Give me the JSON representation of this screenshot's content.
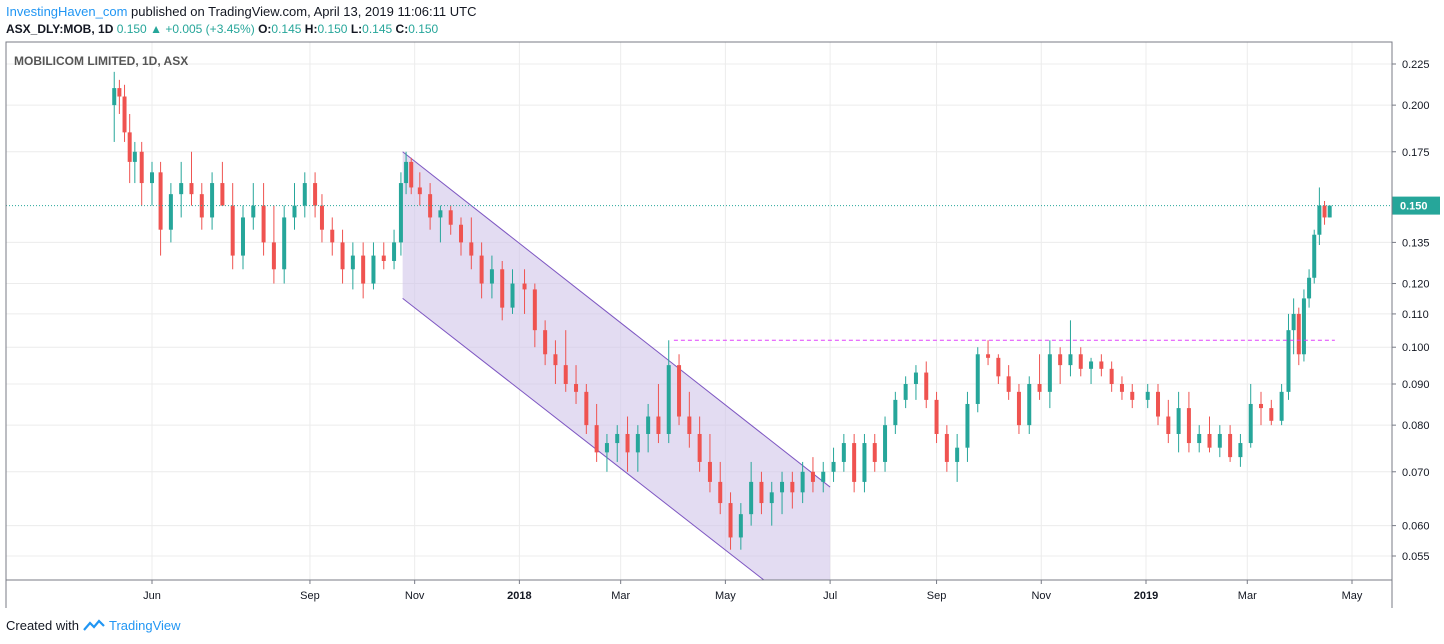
{
  "header": {
    "author": "InvestingHaven_com",
    "published_text": " published on TradingView.com, April 13, 2019 11:06:11 UTC",
    "symbol": "ASX_DLY:MOB, 1D",
    "last": "0.150",
    "change": "+0.005 (+3.45%)",
    "open_label": "O:",
    "open": "0.145",
    "high_label": "H:",
    "high": "0.150",
    "low_label": "L:",
    "low": "0.145",
    "close_label": "C:",
    "close": "0.150"
  },
  "footer": {
    "created_with": "Created with",
    "brand": "TradingView"
  },
  "colors": {
    "up": "#26a69a",
    "down": "#ef5350",
    "channel_fill": "#d1c4e9",
    "channel_line": "#7e57c2",
    "resistance": "#e040fb",
    "price_line": "#26a69a"
  },
  "chart_data": {
    "type": "candlestick",
    "title": "MOBILICOM LIMITED, 1D, ASX",
    "y_scale": "log",
    "ylim": [
      0.05,
      0.23
    ],
    "y_ticks": [
      "0.225",
      "0.200",
      "0.175",
      "0.135",
      "0.120",
      "0.110",
      "0.100",
      "0.090",
      "0.080",
      "0.070",
      "0.060",
      "0.055"
    ],
    "x_ticks": [
      {
        "label": "Jun",
        "date": "2017-06-01",
        "bold": false
      },
      {
        "label": "Sep",
        "date": "2017-09-01",
        "bold": false
      },
      {
        "label": "Nov",
        "date": "2017-11-01",
        "bold": false
      },
      {
        "label": "2018",
        "date": "2018-01-01",
        "bold": true
      },
      {
        "label": "Mar",
        "date": "2018-03-01",
        "bold": false
      },
      {
        "label": "May",
        "date": "2018-05-01",
        "bold": false
      },
      {
        "label": "Jul",
        "date": "2018-07-01",
        "bold": false
      },
      {
        "label": "Sep",
        "date": "2018-09-01",
        "bold": false
      },
      {
        "label": "Nov",
        "date": "2018-11-01",
        "bold": false
      },
      {
        "label": "2019",
        "date": "2019-01-01",
        "bold": true
      },
      {
        "label": "Mar",
        "date": "2019-03-01",
        "bold": false
      },
      {
        "label": "May",
        "date": "2019-05-01",
        "bold": false
      }
    ],
    "last_price_label": "0.150",
    "last_price": 0.15,
    "resistance_level": 0.102,
    "resistance_start": "2018-04-01",
    "resistance_end": "2019-04-21",
    "channel": {
      "upper_start": {
        "date": "2017-10-25",
        "price": 0.175
      },
      "upper_end": {
        "date": "2018-07-01",
        "price": 0.067
      },
      "lower_start": {
        "date": "2017-10-25",
        "price": 0.115
      },
      "lower_end": {
        "date": "2018-06-01",
        "price": 0.05
      },
      "fill_end_date": "2018-07-01",
      "lower_line_end": {
        "date": "2018-06-10",
        "price": 0.048
      }
    },
    "series": [
      {
        "x": "2017-05-10",
        "o": 0.2,
        "h": 0.22,
        "l": 0.18,
        "c": 0.21
      },
      {
        "x": "2017-05-13",
        "o": 0.21,
        "h": 0.215,
        "l": 0.195,
        "c": 0.205
      },
      {
        "x": "2017-05-16",
        "o": 0.205,
        "h": 0.212,
        "l": 0.18,
        "c": 0.185
      },
      {
        "x": "2017-05-19",
        "o": 0.185,
        "h": 0.195,
        "l": 0.16,
        "c": 0.17
      },
      {
        "x": "2017-05-22",
        "o": 0.17,
        "h": 0.18,
        "l": 0.16,
        "c": 0.175
      },
      {
        "x": "2017-05-26",
        "o": 0.175,
        "h": 0.18,
        "l": 0.15,
        "c": 0.16
      },
      {
        "x": "2017-06-01",
        "o": 0.16,
        "h": 0.17,
        "l": 0.15,
        "c": 0.165
      },
      {
        "x": "2017-06-06",
        "o": 0.165,
        "h": 0.17,
        "l": 0.13,
        "c": 0.14
      },
      {
        "x": "2017-06-12",
        "o": 0.14,
        "h": 0.16,
        "l": 0.135,
        "c": 0.155
      },
      {
        "x": "2017-06-18",
        "o": 0.155,
        "h": 0.17,
        "l": 0.145,
        "c": 0.16
      },
      {
        "x": "2017-06-24",
        "o": 0.16,
        "h": 0.175,
        "l": 0.15,
        "c": 0.155
      },
      {
        "x": "2017-06-30",
        "o": 0.155,
        "h": 0.16,
        "l": 0.14,
        "c": 0.145
      },
      {
        "x": "2017-07-06",
        "o": 0.145,
        "h": 0.165,
        "l": 0.14,
        "c": 0.16
      },
      {
        "x": "2017-07-12",
        "o": 0.16,
        "h": 0.17,
        "l": 0.15,
        "c": 0.15
      },
      {
        "x": "2017-07-18",
        "o": 0.15,
        "h": 0.16,
        "l": 0.125,
        "c": 0.13
      },
      {
        "x": "2017-07-24",
        "o": 0.13,
        "h": 0.15,
        "l": 0.125,
        "c": 0.145
      },
      {
        "x": "2017-07-30",
        "o": 0.145,
        "h": 0.16,
        "l": 0.14,
        "c": 0.15
      },
      {
        "x": "2017-08-05",
        "o": 0.15,
        "h": 0.16,
        "l": 0.13,
        "c": 0.135
      },
      {
        "x": "2017-08-11",
        "o": 0.135,
        "h": 0.15,
        "l": 0.12,
        "c": 0.125
      },
      {
        "x": "2017-08-17",
        "o": 0.125,
        "h": 0.15,
        "l": 0.12,
        "c": 0.145
      },
      {
        "x": "2017-08-23",
        "o": 0.145,
        "h": 0.16,
        "l": 0.14,
        "c": 0.15
      },
      {
        "x": "2017-08-29",
        "o": 0.15,
        "h": 0.165,
        "l": 0.145,
        "c": 0.16
      },
      {
        "x": "2017-09-04",
        "o": 0.16,
        "h": 0.165,
        "l": 0.145,
        "c": 0.15
      },
      {
        "x": "2017-09-08",
        "o": 0.15,
        "h": 0.155,
        "l": 0.135,
        "c": 0.14
      },
      {
        "x": "2017-09-14",
        "o": 0.14,
        "h": 0.145,
        "l": 0.13,
        "c": 0.135
      },
      {
        "x": "2017-09-20",
        "o": 0.135,
        "h": 0.14,
        "l": 0.12,
        "c": 0.125
      },
      {
        "x": "2017-09-26",
        "o": 0.125,
        "h": 0.135,
        "l": 0.118,
        "c": 0.13
      },
      {
        "x": "2017-10-02",
        "o": 0.13,
        "h": 0.135,
        "l": 0.115,
        "c": 0.12
      },
      {
        "x": "2017-10-08",
        "o": 0.12,
        "h": 0.135,
        "l": 0.118,
        "c": 0.13
      },
      {
        "x": "2017-10-14",
        "o": 0.13,
        "h": 0.135,
        "l": 0.125,
        "c": 0.128
      },
      {
        "x": "2017-10-20",
        "o": 0.128,
        "h": 0.14,
        "l": 0.125,
        "c": 0.135
      },
      {
        "x": "2017-10-24",
        "o": 0.135,
        "h": 0.165,
        "l": 0.13,
        "c": 0.16
      },
      {
        "x": "2017-10-27",
        "o": 0.16,
        "h": 0.175,
        "l": 0.155,
        "c": 0.17
      },
      {
        "x": "2017-10-30",
        "o": 0.17,
        "h": 0.172,
        "l": 0.155,
        "c": 0.158
      },
      {
        "x": "2017-11-04",
        "o": 0.158,
        "h": 0.165,
        "l": 0.15,
        "c": 0.155
      },
      {
        "x": "2017-11-10",
        "o": 0.155,
        "h": 0.16,
        "l": 0.14,
        "c": 0.145
      },
      {
        "x": "2017-11-16",
        "o": 0.145,
        "h": 0.15,
        "l": 0.135,
        "c": 0.148
      },
      {
        "x": "2017-11-22",
        "o": 0.148,
        "h": 0.15,
        "l": 0.138,
        "c": 0.142
      },
      {
        "x": "2017-11-28",
        "o": 0.142,
        "h": 0.145,
        "l": 0.13,
        "c": 0.135
      },
      {
        "x": "2017-12-04",
        "o": 0.135,
        "h": 0.145,
        "l": 0.125,
        "c": 0.13
      },
      {
        "x": "2017-12-10",
        "o": 0.13,
        "h": 0.135,
        "l": 0.115,
        "c": 0.12
      },
      {
        "x": "2017-12-16",
        "o": 0.12,
        "h": 0.13,
        "l": 0.115,
        "c": 0.125
      },
      {
        "x": "2017-12-22",
        "o": 0.125,
        "h": 0.128,
        "l": 0.108,
        "c": 0.112
      },
      {
        "x": "2017-12-28",
        "o": 0.112,
        "h": 0.125,
        "l": 0.11,
        "c": 0.12
      },
      {
        "x": "2018-01-04",
        "o": 0.12,
        "h": 0.125,
        "l": 0.11,
        "c": 0.118
      },
      {
        "x": "2018-01-10",
        "o": 0.118,
        "h": 0.12,
        "l": 0.1,
        "c": 0.105
      },
      {
        "x": "2018-01-16",
        "o": 0.105,
        "h": 0.108,
        "l": 0.095,
        "c": 0.098
      },
      {
        "x": "2018-01-22",
        "o": 0.098,
        "h": 0.102,
        "l": 0.09,
        "c": 0.095
      },
      {
        "x": "2018-01-28",
        "o": 0.095,
        "h": 0.105,
        "l": 0.088,
        "c": 0.09
      },
      {
        "x": "2018-02-03",
        "o": 0.09,
        "h": 0.095,
        "l": 0.085,
        "c": 0.088
      },
      {
        "x": "2018-02-09",
        "o": 0.088,
        "h": 0.09,
        "l": 0.078,
        "c": 0.08
      },
      {
        "x": "2018-02-15",
        "o": 0.08,
        "h": 0.085,
        "l": 0.072,
        "c": 0.074
      },
      {
        "x": "2018-02-21",
        "o": 0.074,
        "h": 0.078,
        "l": 0.07,
        "c": 0.076
      },
      {
        "x": "2018-02-27",
        "o": 0.076,
        "h": 0.08,
        "l": 0.072,
        "c": 0.078
      },
      {
        "x": "2018-03-05",
        "o": 0.078,
        "h": 0.082,
        "l": 0.07,
        "c": 0.074
      },
      {
        "x": "2018-03-11",
        "o": 0.074,
        "h": 0.08,
        "l": 0.07,
        "c": 0.078
      },
      {
        "x": "2018-03-17",
        "o": 0.078,
        "h": 0.085,
        "l": 0.074,
        "c": 0.082
      },
      {
        "x": "2018-03-23",
        "o": 0.082,
        "h": 0.09,
        "l": 0.076,
        "c": 0.078
      },
      {
        "x": "2018-03-29",
        "o": 0.078,
        "h": 0.102,
        "l": 0.076,
        "c": 0.095
      },
      {
        "x": "2018-04-04",
        "o": 0.095,
        "h": 0.098,
        "l": 0.08,
        "c": 0.082
      },
      {
        "x": "2018-04-10",
        "o": 0.082,
        "h": 0.088,
        "l": 0.075,
        "c": 0.078
      },
      {
        "x": "2018-04-16",
        "o": 0.078,
        "h": 0.082,
        "l": 0.07,
        "c": 0.072
      },
      {
        "x": "2018-04-22",
        "o": 0.072,
        "h": 0.078,
        "l": 0.066,
        "c": 0.068
      },
      {
        "x": "2018-04-28",
        "o": 0.068,
        "h": 0.072,
        "l": 0.062,
        "c": 0.064
      },
      {
        "x": "2018-05-04",
        "o": 0.064,
        "h": 0.066,
        "l": 0.056,
        "c": 0.058
      },
      {
        "x": "2018-05-10",
        "o": 0.058,
        "h": 0.064,
        "l": 0.056,
        "c": 0.062
      },
      {
        "x": "2018-05-16",
        "o": 0.062,
        "h": 0.072,
        "l": 0.06,
        "c": 0.068
      },
      {
        "x": "2018-05-22",
        "o": 0.068,
        "h": 0.07,
        "l": 0.062,
        "c": 0.064
      },
      {
        "x": "2018-05-28",
        "o": 0.064,
        "h": 0.068,
        "l": 0.06,
        "c": 0.066
      },
      {
        "x": "2018-06-03",
        "o": 0.066,
        "h": 0.07,
        "l": 0.062,
        "c": 0.068
      },
      {
        "x": "2018-06-09",
        "o": 0.068,
        "h": 0.07,
        "l": 0.063,
        "c": 0.066
      },
      {
        "x": "2018-06-15",
        "o": 0.066,
        "h": 0.072,
        "l": 0.064,
        "c": 0.07
      },
      {
        "x": "2018-06-21",
        "o": 0.07,
        "h": 0.073,
        "l": 0.066,
        "c": 0.068
      },
      {
        "x": "2018-06-27",
        "o": 0.068,
        "h": 0.072,
        "l": 0.066,
        "c": 0.07
      },
      {
        "x": "2018-07-03",
        "o": 0.07,
        "h": 0.075,
        "l": 0.068,
        "c": 0.072
      },
      {
        "x": "2018-07-09",
        "o": 0.072,
        "h": 0.078,
        "l": 0.07,
        "c": 0.076
      },
      {
        "x": "2018-07-15",
        "o": 0.076,
        "h": 0.078,
        "l": 0.066,
        "c": 0.068
      },
      {
        "x": "2018-07-21",
        "o": 0.068,
        "h": 0.078,
        "l": 0.066,
        "c": 0.076
      },
      {
        "x": "2018-07-27",
        "o": 0.076,
        "h": 0.078,
        "l": 0.07,
        "c": 0.072
      },
      {
        "x": "2018-08-02",
        "o": 0.072,
        "h": 0.082,
        "l": 0.07,
        "c": 0.08
      },
      {
        "x": "2018-08-08",
        "o": 0.08,
        "h": 0.088,
        "l": 0.078,
        "c": 0.086
      },
      {
        "x": "2018-08-14",
        "o": 0.086,
        "h": 0.092,
        "l": 0.084,
        "c": 0.09
      },
      {
        "x": "2018-08-20",
        "o": 0.09,
        "h": 0.095,
        "l": 0.086,
        "c": 0.093
      },
      {
        "x": "2018-08-26",
        "o": 0.093,
        "h": 0.096,
        "l": 0.084,
        "c": 0.086
      },
      {
        "x": "2018-09-01",
        "o": 0.086,
        "h": 0.088,
        "l": 0.076,
        "c": 0.078
      },
      {
        "x": "2018-09-07",
        "o": 0.078,
        "h": 0.08,
        "l": 0.07,
        "c": 0.072
      },
      {
        "x": "2018-09-13",
        "o": 0.072,
        "h": 0.078,
        "l": 0.068,
        "c": 0.075
      },
      {
        "x": "2018-09-19",
        "o": 0.075,
        "h": 0.088,
        "l": 0.072,
        "c": 0.085
      },
      {
        "x": "2018-09-25",
        "o": 0.085,
        "h": 0.1,
        "l": 0.083,
        "c": 0.098
      },
      {
        "x": "2018-10-01",
        "o": 0.098,
        "h": 0.102,
        "l": 0.095,
        "c": 0.097
      },
      {
        "x": "2018-10-07",
        "o": 0.097,
        "h": 0.098,
        "l": 0.09,
        "c": 0.092
      },
      {
        "x": "2018-10-13",
        "o": 0.092,
        "h": 0.095,
        "l": 0.086,
        "c": 0.088
      },
      {
        "x": "2018-10-19",
        "o": 0.088,
        "h": 0.09,
        "l": 0.078,
        "c": 0.08
      },
      {
        "x": "2018-10-25",
        "o": 0.08,
        "h": 0.092,
        "l": 0.078,
        "c": 0.09
      },
      {
        "x": "2018-10-31",
        "o": 0.09,
        "h": 0.098,
        "l": 0.086,
        "c": 0.088
      },
      {
        "x": "2018-11-06",
        "o": 0.088,
        "h": 0.102,
        "l": 0.084,
        "c": 0.098
      },
      {
        "x": "2018-11-12",
        "o": 0.098,
        "h": 0.1,
        "l": 0.09,
        "c": 0.095
      },
      {
        "x": "2018-11-18",
        "o": 0.095,
        "h": 0.108,
        "l": 0.092,
        "c": 0.098
      },
      {
        "x": "2018-11-24",
        "o": 0.098,
        "h": 0.1,
        "l": 0.092,
        "c": 0.094
      },
      {
        "x": "2018-11-30",
        "o": 0.094,
        "h": 0.097,
        "l": 0.09,
        "c": 0.096
      },
      {
        "x": "2018-12-06",
        "o": 0.096,
        "h": 0.098,
        "l": 0.092,
        "c": 0.094
      },
      {
        "x": "2018-12-12",
        "o": 0.094,
        "h": 0.096,
        "l": 0.088,
        "c": 0.09
      },
      {
        "x": "2018-12-18",
        "o": 0.09,
        "h": 0.092,
        "l": 0.086,
        "c": 0.088
      },
      {
        "x": "2018-12-24",
        "o": 0.088,
        "h": 0.09,
        "l": 0.084,
        "c": 0.086
      },
      {
        "x": "2019-01-02",
        "o": 0.086,
        "h": 0.09,
        "l": 0.084,
        "c": 0.088
      },
      {
        "x": "2019-01-08",
        "o": 0.088,
        "h": 0.09,
        "l": 0.08,
        "c": 0.082
      },
      {
        "x": "2019-01-14",
        "o": 0.082,
        "h": 0.086,
        "l": 0.076,
        "c": 0.078
      },
      {
        "x": "2019-01-20",
        "o": 0.078,
        "h": 0.088,
        "l": 0.074,
        "c": 0.084
      },
      {
        "x": "2019-01-26",
        "o": 0.084,
        "h": 0.088,
        "l": 0.074,
        "c": 0.076
      },
      {
        "x": "2019-02-01",
        "o": 0.076,
        "h": 0.08,
        "l": 0.074,
        "c": 0.078
      },
      {
        "x": "2019-02-07",
        "o": 0.078,
        "h": 0.082,
        "l": 0.074,
        "c": 0.075
      },
      {
        "x": "2019-02-13",
        "o": 0.075,
        "h": 0.08,
        "l": 0.073,
        "c": 0.078
      },
      {
        "x": "2019-02-19",
        "o": 0.078,
        "h": 0.08,
        "l": 0.072,
        "c": 0.073
      },
      {
        "x": "2019-02-25",
        "o": 0.073,
        "h": 0.078,
        "l": 0.071,
        "c": 0.076
      },
      {
        "x": "2019-03-03",
        "o": 0.076,
        "h": 0.09,
        "l": 0.075,
        "c": 0.085
      },
      {
        "x": "2019-03-09",
        "o": 0.085,
        "h": 0.088,
        "l": 0.08,
        "c": 0.084
      },
      {
        "x": "2019-03-15",
        "o": 0.084,
        "h": 0.086,
        "l": 0.08,
        "c": 0.081
      },
      {
        "x": "2019-03-21",
        "o": 0.081,
        "h": 0.09,
        "l": 0.08,
        "c": 0.088
      },
      {
        "x": "2019-03-25",
        "o": 0.088,
        "h": 0.11,
        "l": 0.086,
        "c": 0.105
      },
      {
        "x": "2019-03-28",
        "o": 0.105,
        "h": 0.115,
        "l": 0.098,
        "c": 0.11
      },
      {
        "x": "2019-03-31",
        "o": 0.11,
        "h": 0.112,
        "l": 0.095,
        "c": 0.098
      },
      {
        "x": "2019-04-03",
        "o": 0.098,
        "h": 0.118,
        "l": 0.096,
        "c": 0.115
      },
      {
        "x": "2019-04-06",
        "o": 0.115,
        "h": 0.125,
        "l": 0.112,
        "c": 0.122
      },
      {
        "x": "2019-04-09",
        "o": 0.122,
        "h": 0.14,
        "l": 0.12,
        "c": 0.138
      },
      {
        "x": "2019-04-12",
        "o": 0.138,
        "h": 0.158,
        "l": 0.134,
        "c": 0.15
      },
      {
        "x": "2019-04-15",
        "o": 0.15,
        "h": 0.152,
        "l": 0.142,
        "c": 0.145
      },
      {
        "x": "2019-04-18",
        "o": 0.145,
        "h": 0.15,
        "l": 0.145,
        "c": 0.15
      }
    ]
  }
}
